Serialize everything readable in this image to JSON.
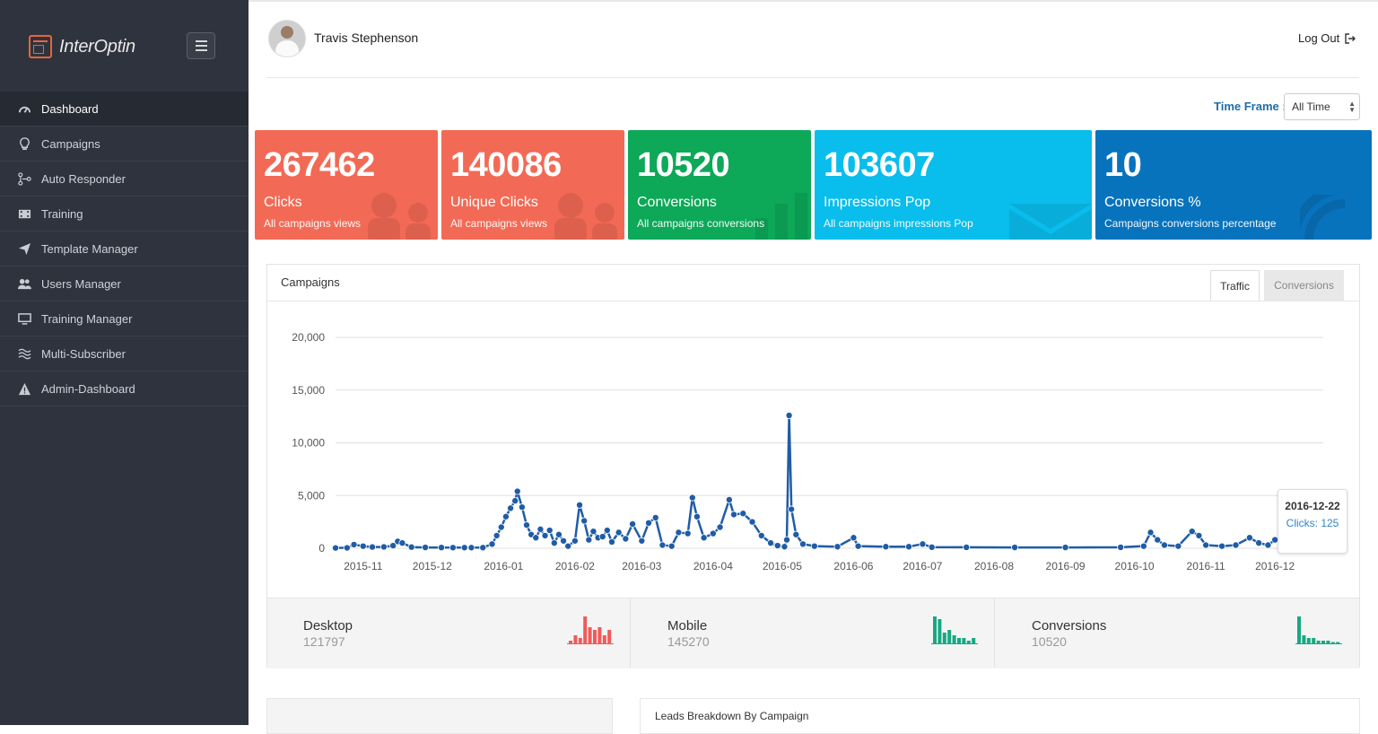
{
  "brand": {
    "name": "InterOptin"
  },
  "sidebar": {
    "items": [
      {
        "label": "Dashboard",
        "icon": "gauge-icon",
        "active": true
      },
      {
        "label": "Campaigns",
        "icon": "lightbulb-icon"
      },
      {
        "label": "Auto Responder",
        "icon": "flow-icon"
      },
      {
        "label": "Training",
        "icon": "film-icon"
      },
      {
        "label": "Template Manager",
        "icon": "paper-plane-icon"
      },
      {
        "label": "Users Manager",
        "icon": "users-icon"
      },
      {
        "label": "Training Manager",
        "icon": "monitor-icon"
      },
      {
        "label": "Multi-Subscriber",
        "icon": "waves-icon"
      },
      {
        "label": "Admin-Dashboard",
        "icon": "warning-icon"
      }
    ]
  },
  "header": {
    "user_name": "Travis Stephenson",
    "logout_label": "Log Out"
  },
  "timeframe": {
    "label": "Time Frame :",
    "value": "All Time"
  },
  "cards": [
    {
      "number": "267462",
      "label": "Clicks",
      "sub": "All campaigns views",
      "color": "#f26a55"
    },
    {
      "number": "140086",
      "label": "Unique Clicks",
      "sub": "All campaigns views",
      "color": "#f26a55"
    },
    {
      "number": "10520",
      "label": "Conversions",
      "sub": "All campaigns conversions",
      "color": "#0da858"
    },
    {
      "number": "103607",
      "label": "Impressions Pop",
      "sub": "All campaigns impressions Pop",
      "color": "#09bdec"
    },
    {
      "number": "10",
      "label": "Conversions %",
      "sub": "Campaigns conversions percentage",
      "color": "#0873bd"
    }
  ],
  "campaigns": {
    "title": "Campaigns",
    "tabs": [
      "Traffic",
      "Conversions"
    ]
  },
  "chart_data": {
    "type": "line",
    "x_tick_labels": [
      "2015-11",
      "2015-12",
      "2016-01",
      "2016-02",
      "2016-03",
      "2016-04",
      "2016-05",
      "2016-06",
      "2016-07",
      "2016-08",
      "2016-09",
      "2016-10",
      "2016-11",
      "2016-12"
    ],
    "y_tick_labels": [
      "0",
      "5,000",
      "10,000",
      "15,000",
      "20,000"
    ],
    "ylim": [
      0,
      20000
    ],
    "xlim": [
      "2015-10-20",
      "2016-12-22"
    ],
    "grid": true,
    "color": "#1f5ca6",
    "series": [
      {
        "points": [
          [
            "2015-10-20",
            30
          ],
          [
            "2015-10-25",
            40
          ],
          [
            "2015-10-28",
            350
          ],
          [
            "2015-11-01",
            200
          ],
          [
            "2015-11-05",
            120
          ],
          [
            "2015-11-10",
            130
          ],
          [
            "2015-11-14",
            250
          ],
          [
            "2015-11-16",
            650
          ],
          [
            "2015-11-18",
            500
          ],
          [
            "2015-11-22",
            110
          ],
          [
            "2015-11-28",
            80
          ],
          [
            "2015-12-05",
            70
          ],
          [
            "2015-12-10",
            60
          ],
          [
            "2015-12-15",
            60
          ],
          [
            "2015-12-18",
            60
          ],
          [
            "2015-12-23",
            60
          ],
          [
            "2015-12-27",
            400
          ],
          [
            "2015-12-29",
            1200
          ],
          [
            "2015-12-31",
            2000
          ],
          [
            "2016-01-02",
            3000
          ],
          [
            "2016-01-04",
            3800
          ],
          [
            "2016-01-06",
            4500
          ],
          [
            "2016-01-07",
            5400
          ],
          [
            "2016-01-09",
            3900
          ],
          [
            "2016-01-11",
            2200
          ],
          [
            "2016-01-13",
            1300
          ],
          [
            "2016-01-15",
            1000
          ],
          [
            "2016-01-17",
            1800
          ],
          [
            "2016-01-19",
            1200
          ],
          [
            "2016-01-21",
            1700
          ],
          [
            "2016-01-23",
            500
          ],
          [
            "2016-01-25",
            1300
          ],
          [
            "2016-01-27",
            700
          ],
          [
            "2016-01-29",
            200
          ],
          [
            "2016-02-01",
            700
          ],
          [
            "2016-02-03",
            4100
          ],
          [
            "2016-02-05",
            2600
          ],
          [
            "2016-02-07",
            800
          ],
          [
            "2016-02-09",
            1600
          ],
          [
            "2016-02-11",
            1000
          ],
          [
            "2016-02-13",
            1100
          ],
          [
            "2016-02-15",
            1700
          ],
          [
            "2016-02-17",
            600
          ],
          [
            "2016-02-20",
            1500
          ],
          [
            "2016-02-23",
            900
          ],
          [
            "2016-02-26",
            2300
          ],
          [
            "2016-03-01",
            700
          ],
          [
            "2016-03-04",
            2400
          ],
          [
            "2016-03-07",
            2900
          ],
          [
            "2016-03-10",
            300
          ],
          [
            "2016-03-14",
            200
          ],
          [
            "2016-03-17",
            1500
          ],
          [
            "2016-03-21",
            1400
          ],
          [
            "2016-03-23",
            4800
          ],
          [
            "2016-03-25",
            3000
          ],
          [
            "2016-03-28",
            1000
          ],
          [
            "2016-04-01",
            1400
          ],
          [
            "2016-04-04",
            2000
          ],
          [
            "2016-04-08",
            4600
          ],
          [
            "2016-04-10",
            3200
          ],
          [
            "2016-04-14",
            3300
          ],
          [
            "2016-04-18",
            2500
          ],
          [
            "2016-04-22",
            1200
          ],
          [
            "2016-04-26",
            500
          ],
          [
            "2016-04-29",
            250
          ],
          [
            "2016-05-02",
            150
          ],
          [
            "2016-05-03",
            800
          ],
          [
            "2016-05-04",
            12600
          ],
          [
            "2016-05-05",
            3700
          ],
          [
            "2016-05-07",
            1300
          ],
          [
            "2016-05-10",
            400
          ],
          [
            "2016-05-15",
            200
          ],
          [
            "2016-05-25",
            150
          ],
          [
            "2016-06-01",
            1000
          ],
          [
            "2016-06-03",
            200
          ],
          [
            "2016-06-15",
            150
          ],
          [
            "2016-06-25",
            150
          ],
          [
            "2016-07-01",
            400
          ],
          [
            "2016-07-05",
            100
          ],
          [
            "2016-07-20",
            90
          ],
          [
            "2016-08-10",
            80
          ],
          [
            "2016-09-01",
            80
          ],
          [
            "2016-09-25",
            90
          ],
          [
            "2016-10-05",
            200
          ],
          [
            "2016-10-08",
            1500
          ],
          [
            "2016-10-11",
            800
          ],
          [
            "2016-10-14",
            300
          ],
          [
            "2016-10-20",
            200
          ],
          [
            "2016-10-26",
            1600
          ],
          [
            "2016-10-29",
            1200
          ],
          [
            "2016-11-01",
            300
          ],
          [
            "2016-11-08",
            200
          ],
          [
            "2016-11-14",
            300
          ],
          [
            "2016-11-20",
            1000
          ],
          [
            "2016-11-24",
            500
          ],
          [
            "2016-11-28",
            300
          ],
          [
            "2016-12-01",
            800
          ],
          [
            "2016-12-04",
            500
          ],
          [
            "2016-12-08",
            250
          ],
          [
            "2016-12-15",
            200
          ],
          [
            "2016-12-22",
            125
          ]
        ]
      }
    ]
  },
  "tooltip": {
    "date": "2016-12-22",
    "text": "Clicks: 125"
  },
  "stats": [
    {
      "name": "Desktop",
      "value": "121797",
      "color": "#f15a5a",
      "bars": [
        1,
        3,
        2,
        10,
        6,
        5,
        6,
        3,
        5
      ]
    },
    {
      "name": "Mobile",
      "value": "145270",
      "color": "#17a882",
      "bars": [
        10,
        9,
        4,
        5,
        3,
        2,
        2,
        1,
        2
      ]
    },
    {
      "name": "Conversions",
      "value": "10520",
      "color": "#17a882",
      "bars": [
        10,
        3,
        2,
        2,
        1,
        1,
        1,
        0.5,
        0.5
      ]
    }
  ],
  "leads": {
    "title": "Leads Breakdown By Campaign"
  }
}
